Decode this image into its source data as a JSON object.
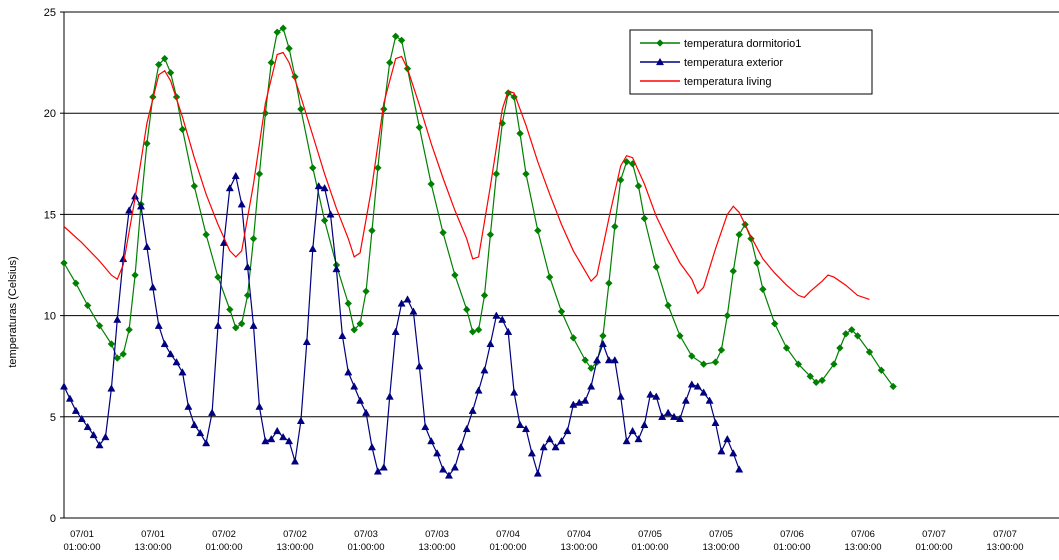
{
  "chart_data": {
    "type": "line",
    "ylabel": "temperaturas (Celsius)",
    "ylim": [
      0,
      25
    ],
    "yticks": [
      0,
      5,
      10,
      15,
      20,
      25
    ],
    "grid": "horizontal",
    "legend_position": "top-right",
    "x_tick_labels": [
      [
        "07/01",
        "01:00:00"
      ],
      [
        "07/01",
        "13:00:00"
      ],
      [
        "07/02",
        "01:00:00"
      ],
      [
        "07/02",
        "13:00:00"
      ],
      [
        "07/03",
        "01:00:00"
      ],
      [
        "07/03",
        "13:00:00"
      ],
      [
        "07/04",
        "01:00:00"
      ],
      [
        "07/04",
        "13:00:00"
      ],
      [
        "07/05",
        "01:00:00"
      ],
      [
        "07/05",
        "13:00:00"
      ],
      [
        "07/06",
        "01:00:00"
      ],
      [
        "07/06",
        "13:00:00"
      ],
      [
        "07/07",
        "01:00:00"
      ],
      [
        "07/07",
        "13:00:00"
      ]
    ],
    "x_unit": "hours",
    "x_range": [
      0,
      168
    ],
    "series": [
      {
        "name": "temperatura dormitorio1",
        "color": "#008000",
        "marker": "diamond",
        "points": [
          [
            0,
            12.6
          ],
          [
            2,
            11.6
          ],
          [
            4,
            10.5
          ],
          [
            6,
            9.5
          ],
          [
            8,
            8.6
          ],
          [
            9,
            7.9
          ],
          [
            10,
            8.1
          ],
          [
            11,
            9.3
          ],
          [
            12,
            12.0
          ],
          [
            13,
            15.5
          ],
          [
            14,
            18.5
          ],
          [
            15,
            20.8
          ],
          [
            16,
            22.4
          ],
          [
            17,
            22.7
          ],
          [
            18,
            22.0
          ],
          [
            19,
            20.8
          ],
          [
            20,
            19.2
          ],
          [
            22,
            16.4
          ],
          [
            24,
            14.0
          ],
          [
            26,
            11.9
          ],
          [
            28,
            10.3
          ],
          [
            29,
            9.4
          ],
          [
            30,
            9.6
          ],
          [
            31,
            11.0
          ],
          [
            32,
            13.8
          ],
          [
            33,
            17.0
          ],
          [
            34,
            20.0
          ],
          [
            35,
            22.5
          ],
          [
            36,
            24.0
          ],
          [
            37,
            24.2
          ],
          [
            38,
            23.2
          ],
          [
            39,
            21.8
          ],
          [
            40,
            20.2
          ],
          [
            42,
            17.3
          ],
          [
            44,
            14.7
          ],
          [
            46,
            12.5
          ],
          [
            48,
            10.6
          ],
          [
            49,
            9.3
          ],
          [
            50,
            9.6
          ],
          [
            51,
            11.2
          ],
          [
            52,
            14.2
          ],
          [
            53,
            17.3
          ],
          [
            54,
            20.2
          ],
          [
            55,
            22.5
          ],
          [
            56,
            23.8
          ],
          [
            57,
            23.6
          ],
          [
            58,
            22.2
          ],
          [
            60,
            19.3
          ],
          [
            62,
            16.5
          ],
          [
            64,
            14.1
          ],
          [
            66,
            12.0
          ],
          [
            68,
            10.3
          ],
          [
            69,
            9.2
          ],
          [
            70,
            9.3
          ],
          [
            71,
            11.0
          ],
          [
            72,
            14.0
          ],
          [
            73,
            17.0
          ],
          [
            74,
            19.5
          ],
          [
            75,
            21.0
          ],
          [
            76,
            20.8
          ],
          [
            77,
            19.0
          ],
          [
            78,
            17.0
          ],
          [
            80,
            14.2
          ],
          [
            82,
            11.9
          ],
          [
            84,
            10.2
          ],
          [
            86,
            8.9
          ],
          [
            88,
            7.8
          ],
          [
            89,
            7.4
          ],
          [
            90,
            7.7
          ],
          [
            91,
            9.0
          ],
          [
            92,
            11.6
          ],
          [
            93,
            14.4
          ],
          [
            94,
            16.7
          ],
          [
            95,
            17.6
          ],
          [
            96,
            17.5
          ],
          [
            97,
            16.4
          ],
          [
            98,
            14.8
          ],
          [
            100,
            12.4
          ],
          [
            102,
            10.5
          ],
          [
            104,
            9.0
          ],
          [
            106,
            8.0
          ],
          [
            108,
            7.6
          ],
          [
            110,
            7.7
          ],
          [
            111,
            8.3
          ],
          [
            112,
            10.0
          ],
          [
            113,
            12.2
          ],
          [
            114,
            14.0
          ],
          [
            115,
            14.5
          ],
          [
            116,
            13.8
          ],
          [
            117,
            12.6
          ],
          [
            118,
            11.3
          ],
          [
            120,
            9.6
          ],
          [
            122,
            8.4
          ],
          [
            124,
            7.6
          ],
          [
            126,
            7.0
          ],
          [
            127,
            6.7
          ],
          [
            128,
            6.8
          ],
          [
            130,
            7.6
          ],
          [
            131,
            8.4
          ],
          [
            132,
            9.1
          ],
          [
            133,
            9.3
          ],
          [
            134,
            9.0
          ],
          [
            136,
            8.2
          ],
          [
            138,
            7.3
          ],
          [
            140,
            6.5
          ]
        ]
      },
      {
        "name": "temperatura exterior",
        "color": "#000080",
        "marker": "triangle",
        "points": [
          [
            0,
            6.5
          ],
          [
            1,
            5.9
          ],
          [
            2,
            5.3
          ],
          [
            3,
            4.9
          ],
          [
            4,
            4.5
          ],
          [
            5,
            4.1
          ],
          [
            6,
            3.6
          ],
          [
            7,
            4.0
          ],
          [
            8,
            6.4
          ],
          [
            9,
            9.8
          ],
          [
            10,
            12.8
          ],
          [
            11,
            15.2
          ],
          [
            12,
            15.9
          ],
          [
            13,
            15.4
          ],
          [
            14,
            13.4
          ],
          [
            15,
            11.4
          ],
          [
            16,
            9.5
          ],
          [
            17,
            8.6
          ],
          [
            18,
            8.1
          ],
          [
            19,
            7.7
          ],
          [
            20,
            7.2
          ],
          [
            21,
            5.5
          ],
          [
            22,
            4.6
          ],
          [
            23,
            4.2
          ],
          [
            24,
            3.7
          ],
          [
            25,
            5.2
          ],
          [
            26,
            9.5
          ],
          [
            27,
            13.6
          ],
          [
            28,
            16.3
          ],
          [
            29,
            16.9
          ],
          [
            30,
            15.5
          ],
          [
            31,
            12.4
          ],
          [
            32,
            9.5
          ],
          [
            33,
            5.5
          ],
          [
            34,
            3.8
          ],
          [
            35,
            3.9
          ],
          [
            36,
            4.3
          ],
          [
            37,
            4.0
          ],
          [
            38,
            3.8
          ],
          [
            39,
            2.8
          ],
          [
            40,
            4.8
          ],
          [
            41,
            8.7
          ],
          [
            42,
            13.3
          ],
          [
            43,
            16.4
          ],
          [
            44,
            16.3
          ],
          [
            45,
            15.0
          ],
          [
            46,
            12.3
          ],
          [
            47,
            9.0
          ],
          [
            48,
            7.2
          ],
          [
            49,
            6.5
          ],
          [
            50,
            5.8
          ],
          [
            51,
            5.2
          ],
          [
            52,
            3.5
          ],
          [
            53,
            2.3
          ],
          [
            54,
            2.5
          ],
          [
            55,
            6.0
          ],
          [
            56,
            9.2
          ],
          [
            57,
            10.6
          ],
          [
            58,
            10.8
          ],
          [
            59,
            10.2
          ],
          [
            60,
            7.5
          ],
          [
            61,
            4.5
          ],
          [
            62,
            3.8
          ],
          [
            63,
            3.2
          ],
          [
            64,
            2.4
          ],
          [
            65,
            2.1
          ],
          [
            66,
            2.5
          ],
          [
            67,
            3.5
          ],
          [
            68,
            4.4
          ],
          [
            69,
            5.3
          ],
          [
            70,
            6.3
          ],
          [
            71,
            7.3
          ],
          [
            72,
            8.6
          ],
          [
            73,
            10.0
          ],
          [
            74,
            9.8
          ],
          [
            75,
            9.2
          ],
          [
            76,
            6.2
          ],
          [
            77,
            4.6
          ],
          [
            78,
            4.4
          ],
          [
            79,
            3.2
          ],
          [
            80,
            2.2
          ],
          [
            81,
            3.5
          ],
          [
            82,
            3.9
          ],
          [
            83,
            3.5
          ],
          [
            84,
            3.8
          ],
          [
            85,
            4.3
          ],
          [
            86,
            5.6
          ],
          [
            87,
            5.7
          ],
          [
            88,
            5.8
          ],
          [
            89,
            6.5
          ],
          [
            90,
            7.8
          ],
          [
            91,
            8.6
          ],
          [
            92,
            7.8
          ],
          [
            93,
            7.8
          ],
          [
            94,
            6.0
          ],
          [
            95,
            3.8
          ],
          [
            96,
            4.3
          ],
          [
            97,
            3.9
          ],
          [
            98,
            4.6
          ],
          [
            99,
            6.1
          ],
          [
            100,
            6.0
          ],
          [
            101,
            5.0
          ],
          [
            102,
            5.2
          ],
          [
            103,
            5.0
          ],
          [
            104,
            4.9
          ],
          [
            105,
            5.8
          ],
          [
            106,
            6.6
          ],
          [
            107,
            6.5
          ],
          [
            108,
            6.2
          ],
          [
            109,
            5.8
          ],
          [
            110,
            4.7
          ],
          [
            111,
            3.3
          ],
          [
            112,
            3.9
          ],
          [
            113,
            3.2
          ],
          [
            114,
            2.4
          ]
        ]
      },
      {
        "name": "temperatura living",
        "color": "#ff0000",
        "marker": "none",
        "points": [
          [
            0,
            14.4
          ],
          [
            3,
            13.6
          ],
          [
            6,
            12.7
          ],
          [
            8,
            12.0
          ],
          [
            9,
            11.8
          ],
          [
            10,
            12.5
          ],
          [
            12,
            15.8
          ],
          [
            14,
            19.5
          ],
          [
            16,
            21.9
          ],
          [
            17,
            22.1
          ],
          [
            18,
            21.6
          ],
          [
            20,
            19.8
          ],
          [
            22,
            17.8
          ],
          [
            24,
            16.0
          ],
          [
            26,
            14.5
          ],
          [
            28,
            13.2
          ],
          [
            29,
            12.9
          ],
          [
            30,
            13.2
          ],
          [
            32,
            16.5
          ],
          [
            34,
            20.5
          ],
          [
            36,
            22.9
          ],
          [
            37,
            23.0
          ],
          [
            38,
            22.5
          ],
          [
            40,
            20.8
          ],
          [
            42,
            18.9
          ],
          [
            44,
            17.0
          ],
          [
            46,
            15.3
          ],
          [
            48,
            13.8
          ],
          [
            49,
            12.9
          ],
          [
            50,
            13.1
          ],
          [
            52,
            16.4
          ],
          [
            54,
            20.5
          ],
          [
            56,
            22.7
          ],
          [
            57,
            22.8
          ],
          [
            58,
            22.2
          ],
          [
            60,
            20.4
          ],
          [
            62,
            18.5
          ],
          [
            64,
            16.8
          ],
          [
            66,
            15.2
          ],
          [
            68,
            13.8
          ],
          [
            69,
            12.8
          ],
          [
            70,
            12.9
          ],
          [
            72,
            16.4
          ],
          [
            74,
            20.2
          ],
          [
            75,
            21.1
          ],
          [
            76,
            21.0
          ],
          [
            78,
            19.4
          ],
          [
            80,
            17.6
          ],
          [
            82,
            16.0
          ],
          [
            84,
            14.5
          ],
          [
            86,
            13.2
          ],
          [
            88,
            12.2
          ],
          [
            89,
            11.7
          ],
          [
            90,
            12.0
          ],
          [
            92,
            14.8
          ],
          [
            94,
            17.4
          ],
          [
            95,
            17.9
          ],
          [
            96,
            17.8
          ],
          [
            98,
            16.5
          ],
          [
            100,
            14.9
          ],
          [
            102,
            13.7
          ],
          [
            104,
            12.6
          ],
          [
            106,
            11.8
          ],
          [
            107,
            11.1
          ],
          [
            108,
            11.4
          ],
          [
            110,
            13.3
          ],
          [
            112,
            15.0
          ],
          [
            113,
            15.4
          ],
          [
            114,
            15.1
          ],
          [
            116,
            13.9
          ],
          [
            118,
            12.8
          ],
          [
            120,
            12.1
          ],
          [
            122,
            11.5
          ],
          [
            124,
            11.0
          ],
          [
            125,
            10.9
          ],
          [
            126,
            11.2
          ],
          [
            128,
            11.7
          ],
          [
            129,
            12.0
          ],
          [
            130,
            11.9
          ],
          [
            132,
            11.5
          ],
          [
            134,
            11.0
          ],
          [
            136,
            10.8
          ]
        ]
      }
    ]
  }
}
